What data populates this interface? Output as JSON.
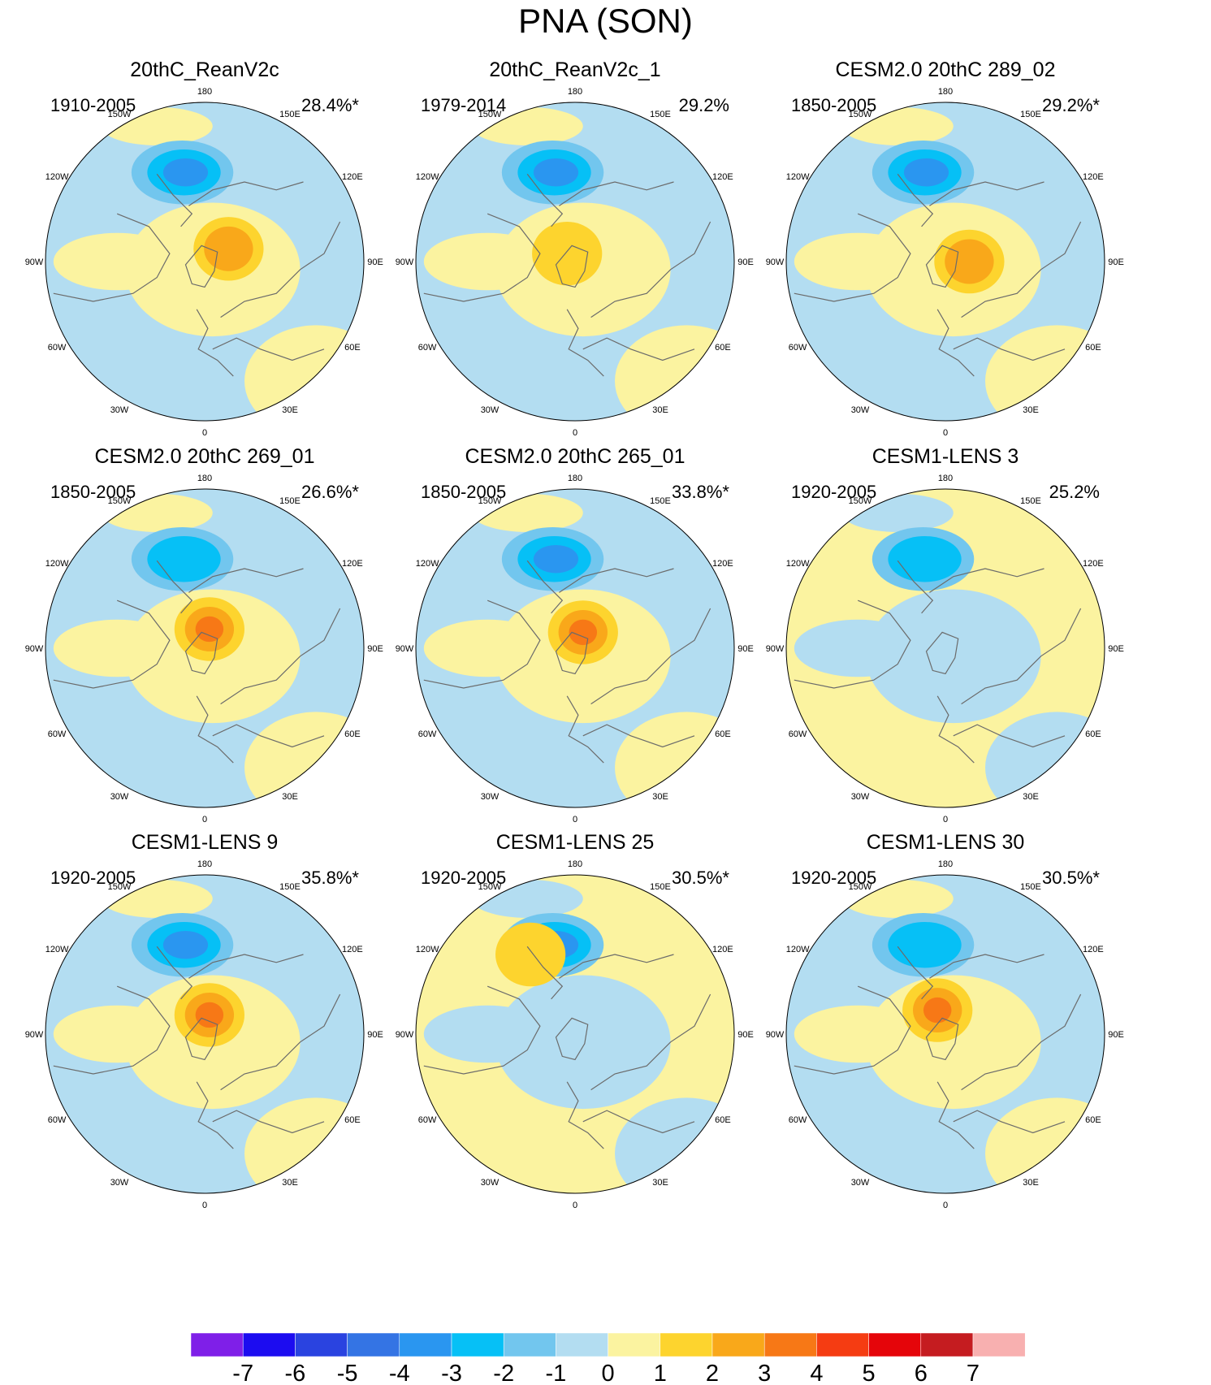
{
  "title": "PNA (SON)",
  "colors": {
    "neg7": "#7f1fe8",
    "neg6": "#1c0cf0",
    "neg5": "#2a43e0",
    "neg4": "#3474e4",
    "neg3": "#2a96f0",
    "neg2": "#06c0f6",
    "neg1": "#72c6ee",
    "neg0": "#b3ddf1",
    "pos0": "#fbf3a0",
    "pos1": "#fdd42e",
    "pos2": "#f9a81a",
    "pos3": "#f77816",
    "pos4": "#f53c12",
    "pos5": "#e5050a",
    "pos6": "#c51c20",
    "pos7": "#f8b0b0",
    "coast": "#6b6b6b"
  },
  "longitude_labels": [
    "180",
    "150E",
    "120E",
    "90E",
    "60E",
    "30E",
    "0",
    "30W",
    "60W",
    "90W",
    "120W",
    "150W"
  ],
  "panels": [
    {
      "title": "20thC_ReanV2c",
      "period": "1910-2005",
      "percent": "28.4%*",
      "neg_level": 3,
      "pos_level": 2,
      "pos_cx": 0.15,
      "pos_cy": -0.08,
      "bg": "neg"
    },
    {
      "title": "20thC_ReanV2c_1",
      "period": "1979-2014",
      "percent": "29.2%",
      "neg_level": 3,
      "pos_level": 1,
      "pos_cx": -0.05,
      "pos_cy": -0.05,
      "bg": "neg"
    },
    {
      "title": "CESM2.0 20thC 289_02",
      "period": "1850-2005",
      "percent": "29.2%*",
      "neg_level": 3,
      "pos_level": 2,
      "pos_cx": 0.15,
      "pos_cy": 0.0,
      "bg": "neg"
    },
    {
      "title": "CESM2.0 20thC 269_01",
      "period": "1850-2005",
      "percent": "26.6%*",
      "neg_level": 2,
      "pos_level": 3,
      "pos_cx": 0.03,
      "pos_cy": -0.12,
      "bg": "neg"
    },
    {
      "title": "CESM2.0 20thC 265_01",
      "period": "1850-2005",
      "percent": "33.8%*",
      "neg_level": 3,
      "pos_level": 3,
      "pos_cx": 0.05,
      "pos_cy": -0.1,
      "bg": "neg"
    },
    {
      "title": "CESM1-LENS 3",
      "period": "1920-2005",
      "percent": "25.2%",
      "neg_level": 2,
      "pos_level": 0,
      "pos_cx": 0.0,
      "pos_cy": 0.0,
      "bg": "pos"
    },
    {
      "title": "CESM1-LENS 9",
      "period": "1920-2005",
      "percent": "35.8%*",
      "neg_level": 3,
      "pos_level": 3,
      "pos_cx": 0.03,
      "pos_cy": -0.12,
      "bg": "neg"
    },
    {
      "title": "CESM1-LENS 25",
      "period": "1920-2005",
      "percent": "30.5%*",
      "neg_level": 3,
      "pos_level": 1,
      "pos_cx": -0.28,
      "pos_cy": -0.5,
      "bg": "pos"
    },
    {
      "title": "CESM1-LENS 30",
      "period": "1920-2005",
      "percent": "30.5%*",
      "neg_level": 2,
      "pos_level": 3,
      "pos_cx": -0.05,
      "pos_cy": -0.15,
      "bg": "neg"
    }
  ],
  "colorbar": {
    "labels": [
      "-7",
      "-6",
      "-5",
      "-4",
      "-3",
      "-2",
      "-1",
      "0",
      "1",
      "2",
      "3",
      "4",
      "5",
      "6",
      "7"
    ]
  }
}
